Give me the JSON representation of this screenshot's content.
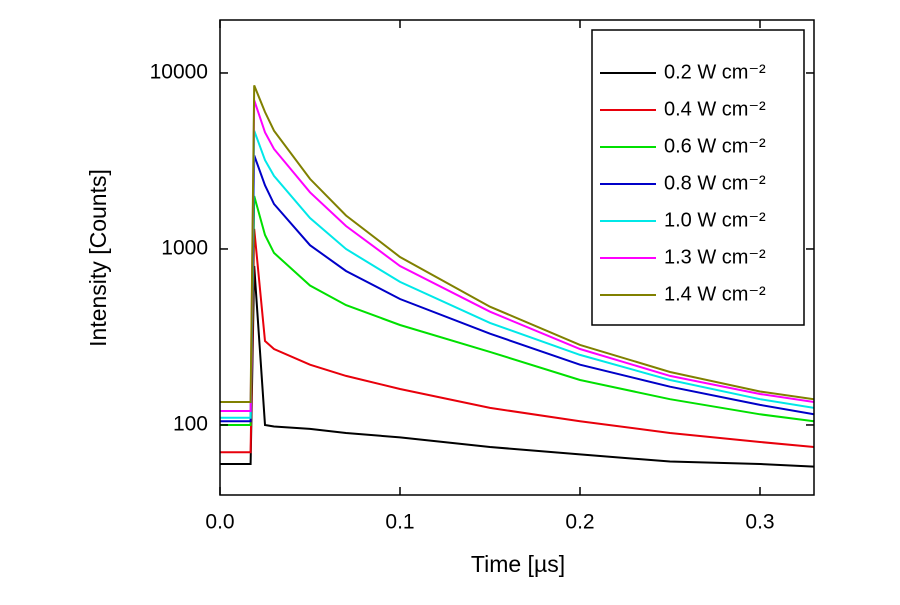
{
  "chart_data": {
    "type": "line",
    "x_label": "Time [µs]",
    "y_label": "Intensity [Counts]",
    "x": [
      0,
      0.017,
      0.019,
      0.025,
      0.03,
      0.05,
      0.07,
      0.1,
      0.15,
      0.2,
      0.25,
      0.3,
      0.33
    ],
    "series": [
      {
        "name": "0.2 W cm⁻²",
        "color": "#000000",
        "values": [
          60,
          60,
          800,
          100,
          98,
          95,
          90,
          85,
          75,
          68,
          62,
          60,
          58
        ]
      },
      {
        "name": "0.4 W cm⁻²",
        "color": "#e8000b",
        "values": [
          70,
          70,
          1300,
          300,
          270,
          220,
          190,
          160,
          125,
          105,
          90,
          80,
          75
        ]
      },
      {
        "name": "0.6 W cm⁻²",
        "color": "#00e000",
        "values": [
          100,
          100,
          2000,
          1200,
          950,
          620,
          480,
          370,
          260,
          180,
          140,
          115,
          105
        ]
      },
      {
        "name": "0.8 W cm⁻²",
        "color": "#0000c8",
        "values": [
          105,
          105,
          3400,
          2300,
          1800,
          1050,
          750,
          520,
          330,
          220,
          165,
          130,
          115
        ]
      },
      {
        "name": "1.0 W cm⁻²",
        "color": "#00e8e8",
        "values": [
          110,
          110,
          4700,
          3200,
          2600,
          1500,
          1000,
          650,
          380,
          250,
          180,
          140,
          125
        ]
      },
      {
        "name": "1.3 W cm⁻²",
        "color": "#ff00ff",
        "values": [
          120,
          120,
          7000,
          4600,
          3700,
          2100,
          1350,
          800,
          440,
          270,
          190,
          150,
          135
        ]
      },
      {
        "name": "1.4 W cm⁻²",
        "color": "#808000",
        "values": [
          135,
          135,
          8500,
          6000,
          4700,
          2500,
          1550,
          900,
          470,
          285,
          200,
          155,
          140
        ]
      }
    ],
    "xlim": [
      0,
      0.33
    ],
    "xticks": [
      {
        "value": 0,
        "label": "0.0"
      },
      0.1,
      0.2,
      0.3
    ],
    "ylim": [
      40,
      20000
    ],
    "yticks": [
      100,
      1000,
      10000
    ],
    "yscale": "log",
    "grid": false,
    "legend": "top-right"
  }
}
